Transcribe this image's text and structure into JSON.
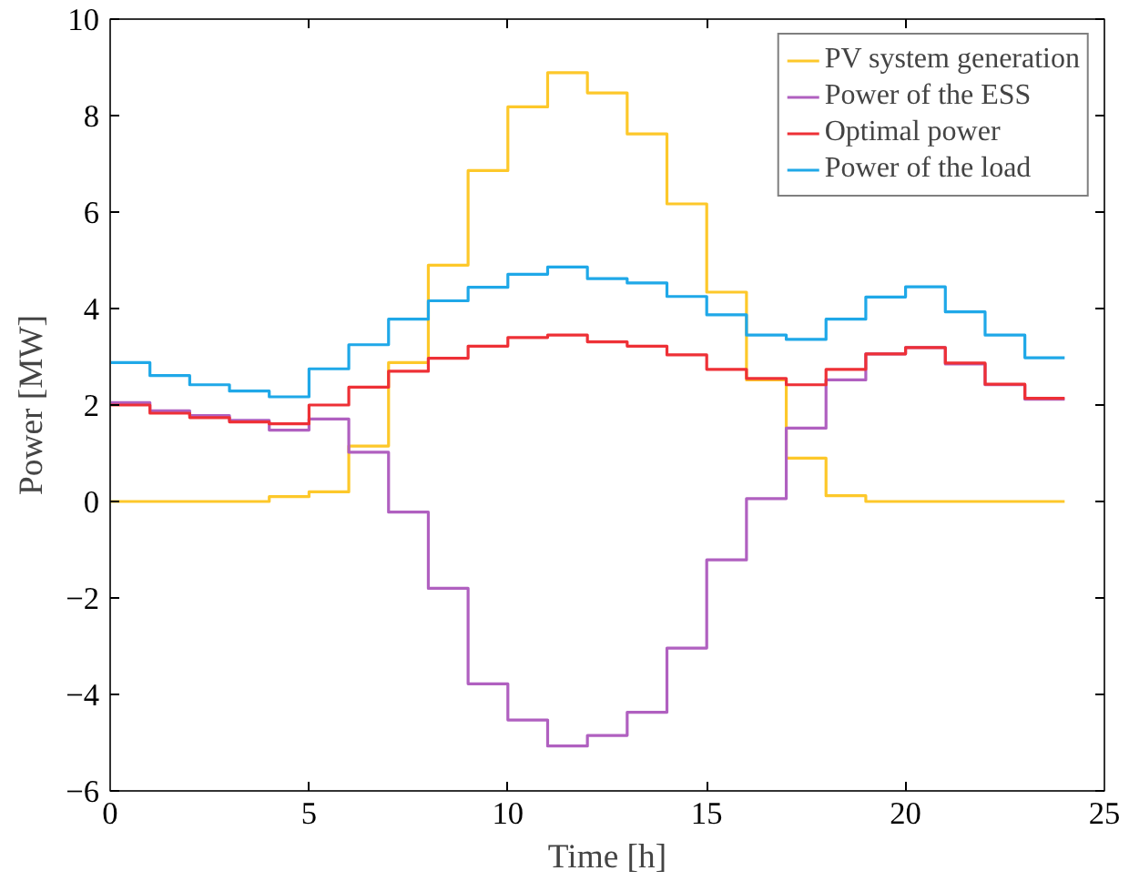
{
  "chart_data": {
    "type": "step",
    "xlabel": "Time [h]",
    "ylabel": "Power [MW]",
    "x": [
      0,
      1,
      2,
      3,
      4,
      5,
      6,
      7,
      8,
      9,
      10,
      11,
      12,
      13,
      14,
      15,
      16,
      17,
      18,
      19,
      20,
      21,
      22,
      23,
      24
    ],
    "series": [
      {
        "name": "PV system generation",
        "color": "#fdc82a",
        "values": [
          0,
          0,
          0,
          0,
          0.1,
          0.2,
          1.15,
          2.88,
          4.9,
          6.86,
          8.18,
          8.89,
          8.47,
          7.62,
          6.17,
          4.34,
          2.52,
          0.9,
          0.12,
          0,
          0,
          0,
          0,
          0,
          0
        ]
      },
      {
        "name": "Power of the ESS",
        "color": "#b060c0",
        "values": [
          2.05,
          1.88,
          1.78,
          1.68,
          1.48,
          1.71,
          1.02,
          -0.22,
          -1.8,
          -3.78,
          -4.53,
          -5.07,
          -4.85,
          -4.37,
          -3.04,
          -1.21,
          0.06,
          1.52,
          2.52,
          3.06,
          3.19,
          2.85,
          2.42,
          2.12,
          2.12
        ]
      },
      {
        "name": "Optimal power",
        "color": "#ee3036",
        "values": [
          2.0,
          1.83,
          1.74,
          1.65,
          1.61,
          2.0,
          2.37,
          2.7,
          2.97,
          3.22,
          3.4,
          3.45,
          3.31,
          3.22,
          3.04,
          2.74,
          2.55,
          2.42,
          2.74,
          3.06,
          3.19,
          2.87,
          2.43,
          2.14,
          2.14
        ]
      },
      {
        "name": "Power of the load",
        "color": "#1fa8e8",
        "values": [
          2.88,
          2.61,
          2.42,
          2.29,
          2.17,
          2.75,
          3.25,
          3.78,
          4.16,
          4.44,
          4.71,
          4.86,
          4.62,
          4.53,
          4.25,
          3.87,
          3.45,
          3.36,
          3.78,
          4.24,
          4.45,
          3.93,
          3.45,
          2.98,
          2.98
        ]
      }
    ],
    "xlim": [
      0,
      25
    ],
    "xticks": [
      0,
      5,
      10,
      15,
      20,
      25
    ],
    "ylim": [
      -6,
      10
    ],
    "yticks": [
      -6,
      -4,
      -2,
      0,
      2,
      4,
      6,
      8,
      10
    ],
    "grid": false,
    "legend": "top right"
  }
}
